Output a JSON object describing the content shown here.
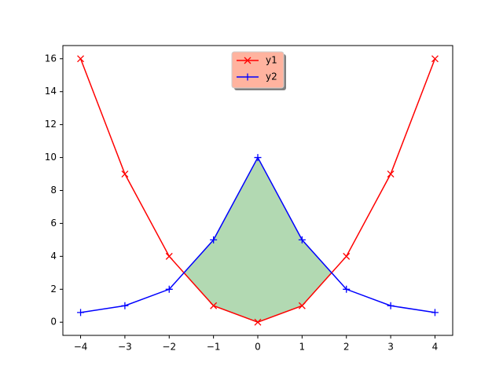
{
  "chart_data": {
    "type": "line",
    "x": [
      -4,
      -3,
      -2,
      -1,
      0,
      1,
      2,
      3,
      4
    ],
    "series": [
      {
        "name": "y1",
        "color": "#ff0000",
        "marker": "x",
        "values": [
          16,
          9,
          4,
          1,
          0,
          1,
          4,
          9,
          16
        ]
      },
      {
        "name": "y2",
        "color": "#0000ff",
        "marker": "+",
        "values": [
          0.588,
          1,
          2,
          5,
          10,
          5,
          2,
          1,
          0.588
        ]
      }
    ],
    "fill_between": {
      "color": "#b2d9b2",
      "where": "y2>y1"
    },
    "xlim": [
      -4.4,
      4.4
    ],
    "xticks": [
      {
        "value": -4,
        "label": "−4"
      },
      {
        "value": -3,
        "label": "−3"
      },
      {
        "value": -2,
        "label": "−2"
      },
      {
        "value": -1,
        "label": "−1"
      },
      0,
      1,
      2,
      3,
      4
    ],
    "ylim": [
      -0.8,
      16.8
    ],
    "yticks": [
      0,
      2,
      4,
      6,
      8,
      10,
      12,
      14,
      16
    ],
    "legend": {
      "loc": "upper center",
      "facecolor": "#ffb39f",
      "shadow": true
    }
  }
}
